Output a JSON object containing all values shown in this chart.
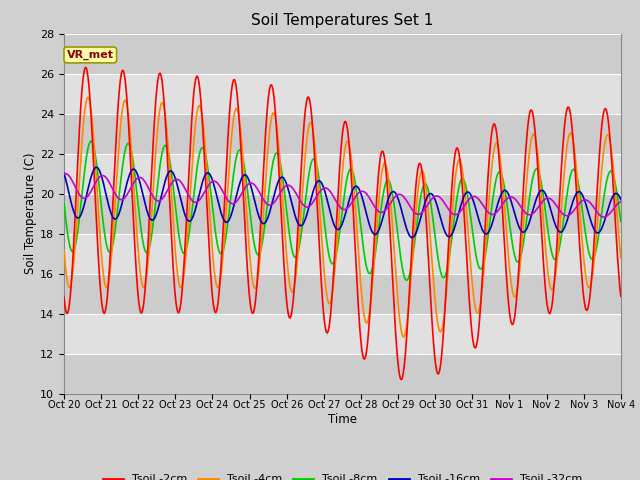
{
  "title": "Soil Temperatures Set 1",
  "xlabel": "Time",
  "ylabel": "Soil Temperature (C)",
  "ylim": [
    10,
    28
  ],
  "yticks": [
    10,
    12,
    14,
    16,
    18,
    20,
    22,
    24,
    26,
    28
  ],
  "xtick_labels": [
    "Oct 20",
    "Oct 21",
    "Oct 22",
    "Oct 23",
    "Oct 24",
    "Oct 25",
    "Oct 26",
    "Oct 27",
    "Oct 28",
    "Oct 29",
    "Oct 30",
    "Oct 31",
    "Nov 1",
    "Nov 2",
    "Nov 3",
    "Nov 4"
  ],
  "label_annotation": "VR_met",
  "colors": {
    "2cm": "#ff0000",
    "4cm": "#ff8800",
    "8cm": "#00cc00",
    "16cm": "#0000bb",
    "32cm": "#cc00cc"
  },
  "legend_labels": [
    "Tsoil -2cm",
    "Tsoil -4cm",
    "Tsoil -8cm",
    "Tsoil -16cm",
    "Tsoil -32cm"
  ],
  "fig_facecolor": "#d0d0d0",
  "ax_facecolor": "#e0e0e0",
  "n_days": 15,
  "samples_per_day": 48
}
